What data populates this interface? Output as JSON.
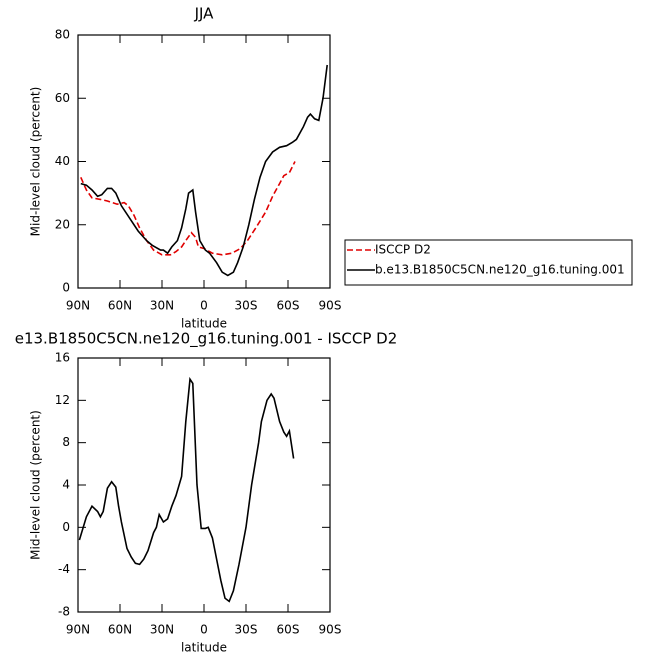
{
  "chart_data": [
    {
      "type": "line",
      "title": "JJA",
      "x_label": "latitude",
      "y_label": "Mid-level cloud (percent)",
      "xlim": [
        90,
        -90
      ],
      "ylim": [
        0,
        80
      ],
      "xticks": [
        {
          "value": 90,
          "label": "90N"
        },
        {
          "value": 60,
          "label": "60N"
        },
        {
          "value": 30,
          "label": "30N"
        },
        0,
        {
          "value": -30,
          "label": "30S"
        },
        {
          "value": -60,
          "label": "60S"
        },
        {
          "value": -90,
          "label": "90S"
        }
      ],
      "yticks": [
        0,
        20,
        40,
        60,
        80
      ],
      "series": [
        {
          "name": "ISCCP D2",
          "color": "#e00000",
          "dash": true,
          "x": [
            88,
            84,
            80,
            74,
            69,
            62,
            57,
            54,
            50,
            46,
            41,
            36,
            30,
            24,
            20,
            16,
            13,
            9,
            6,
            4,
            0,
            -6,
            -13,
            -20,
            -26,
            -31,
            -37,
            -44,
            -49,
            -54,
            -57,
            -61,
            -65
          ],
          "values": [
            35,
            31,
            28.5,
            28,
            27.5,
            26.5,
            27,
            26,
            23,
            19,
            15,
            12,
            10.5,
            10.5,
            11.5,
            13,
            15,
            17.5,
            16,
            13,
            12.5,
            11,
            10.5,
            11,
            12.5,
            15,
            19,
            24,
            29,
            33,
            35.5,
            36.5,
            40
          ]
        },
        {
          "name": "b.e13.B1850C5CN.ne120_g16.tuning.001",
          "color": "#000000",
          "dash": false,
          "x": [
            88,
            84,
            80,
            76,
            73,
            69,
            66,
            63,
            59,
            53,
            47,
            41,
            37,
            31,
            29,
            26,
            23,
            19,
            16,
            13,
            11,
            8,
            6,
            3,
            -1,
            -4,
            -9,
            -13,
            -17,
            -21,
            -24,
            -28,
            -32,
            -36,
            -40,
            -44,
            -49,
            -54,
            -59,
            -63,
            -66,
            -71,
            -74,
            -76,
            -79,
            -82,
            -85,
            -88
          ],
          "values": [
            33,
            32.5,
            31,
            29,
            29.5,
            31.5,
            31.5,
            30,
            26,
            22,
            18,
            15,
            13.5,
            12,
            12,
            11,
            13,
            15,
            19,
            25,
            30,
            31,
            24,
            15,
            12,
            11,
            8,
            5,
            4,
            5,
            8,
            13,
            20,
            28,
            35,
            40,
            43,
            44.5,
            45,
            46,
            47,
            51,
            54,
            55,
            53.5,
            53,
            60,
            70.5
          ]
        }
      ]
    },
    {
      "type": "line",
      "title": "e13.B1850C5CN.ne120_g16.tuning.001 - ISCCP D2",
      "x_label": "latitude",
      "y_label": "Mid-level cloud (percent)",
      "xlim": [
        90,
        -90
      ],
      "ylim": [
        -8,
        16
      ],
      "xticks": [
        {
          "value": 90,
          "label": "90N"
        },
        {
          "value": 60,
          "label": "60N"
        },
        {
          "value": 30,
          "label": "30N"
        },
        0,
        {
          "value": -30,
          "label": "30S"
        },
        {
          "value": -60,
          "label": "60S"
        },
        {
          "value": -90,
          "label": "90S"
        }
      ],
      "yticks": [
        -8,
        -4,
        0,
        4,
        8,
        12,
        16
      ],
      "color": "#000000",
      "x": [
        89,
        84,
        80,
        76,
        74,
        72,
        69,
        66,
        63,
        61,
        59,
        55,
        52,
        49,
        46,
        43,
        40,
        36,
        34,
        32,
        29,
        26,
        23,
        20,
        16,
        13,
        10,
        8,
        5,
        2,
        -1,
        -3,
        -6,
        -9,
        -12,
        -15,
        -18,
        -21,
        -25,
        -30,
        -34,
        -39,
        -41,
        -45,
        -48,
        -50,
        -54,
        -57,
        -59,
        -61,
        -64
      ],
      "values": [
        -1.2,
        1,
        2,
        1.5,
        1,
        1.5,
        3.7,
        4.3,
        3.8,
        2,
        0.5,
        -2,
        -2.8,
        -3.4,
        -3.5,
        -3,
        -2.2,
        -0.5,
        0,
        1.2,
        0.5,
        0.8,
        2,
        3,
        4.8,
        10,
        14,
        13.6,
        4,
        -0.1,
        -0.1,
        0,
        -1,
        -3,
        -5,
        -6.7,
        -7,
        -6,
        -3.5,
        0,
        4,
        8,
        10,
        12,
        12.6,
        12.2,
        10,
        9,
        8.6,
        9.1,
        6.5
      ]
    }
  ]
}
